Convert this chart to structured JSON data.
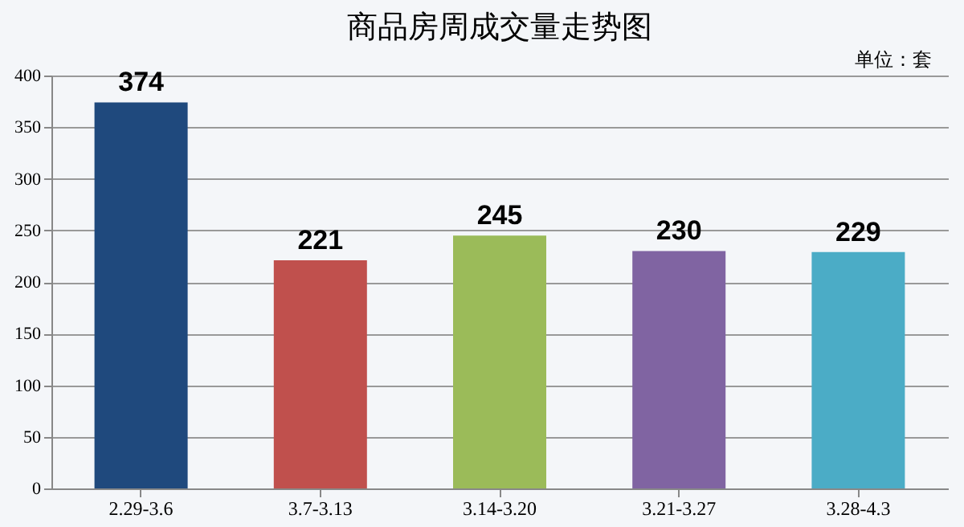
{
  "chart_data": {
    "type": "bar",
    "title": "商品房周成交量走势图",
    "annotations": [
      "单位：套"
    ],
    "categories": [
      "2.29-3.6",
      "3.7-3.13",
      "3.14-3.20",
      "3.21-3.27",
      "3.28-4.3"
    ],
    "values": [
      374,
      221,
      245,
      230,
      229
    ],
    "colors": [
      "#1f497d",
      "#c0504d",
      "#9bbb59",
      "#8064a2",
      "#4bacc6"
    ],
    "ylim": [
      0,
      400
    ],
    "yticks": [
      0,
      50,
      100,
      150,
      200,
      250,
      300,
      350,
      400
    ],
    "grid": "y",
    "data_labels": true,
    "legend": false
  }
}
